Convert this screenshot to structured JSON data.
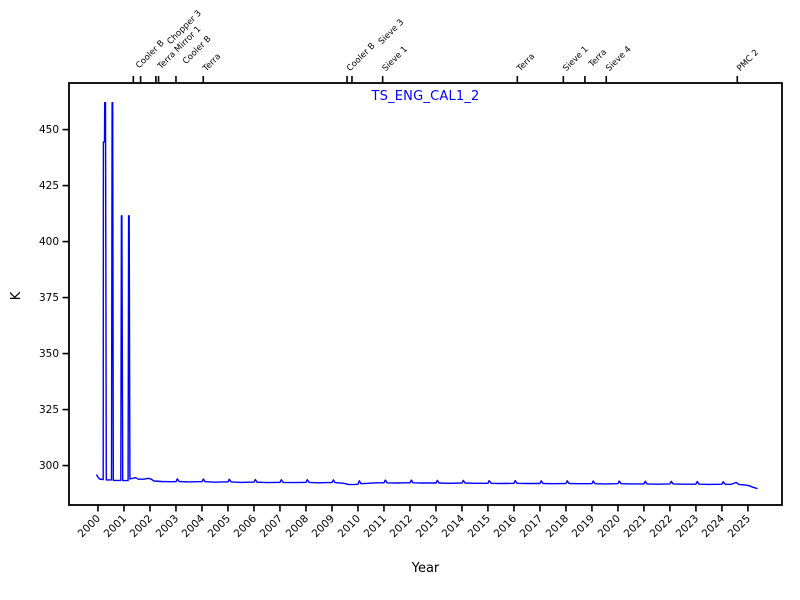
{
  "figure": {
    "title": "TS_ENG_CAL1_2",
    "xlabel": "Year",
    "ylabel": "K",
    "title_color": "#0000ff",
    "line_color": "#0000ff",
    "axis_color": "#000000",
    "background_color": "#ffffff"
  },
  "chart_data": {
    "type": "line",
    "title": "TS_ENG_CAL1_2",
    "xlabel": "Year",
    "ylabel": "K",
    "xlim": [
      1998.886,
      2026.31
    ],
    "ylim": [
      282.4,
      470.8
    ],
    "xticks": [
      2000,
      2001,
      2002,
      2003,
      2004,
      2005,
      2006,
      2007,
      2008,
      2009,
      2010,
      2011,
      2012,
      2013,
      2014,
      2015,
      2016,
      2017,
      2018,
      2019,
      2020,
      2021,
      2022,
      2023,
      2024,
      2025
    ],
    "yticks": [
      300,
      325,
      350,
      375,
      400,
      425,
      450
    ],
    "grid": false,
    "legend": null,
    "events": [
      {
        "label": "Cooler B",
        "year": 2001.36,
        "lift": 6
      },
      {
        "label": "Chopper 3",
        "year": 2001.64,
        "lift": 40
      },
      {
        "label": "Terra Mirror 1",
        "year": 2002.23,
        "lift": 5
      },
      {
        "label": "",
        "year": 2002.33,
        "lift": 0
      },
      {
        "label": "Cooler B",
        "year": 2003.0,
        "lift": 12
      },
      {
        "label": "Terra",
        "year": 2004.05,
        "lift": 2
      },
      {
        "label": "Cooler B",
        "year": 2009.58,
        "lift": 2
      },
      {
        "label": "Sieve 3",
        "year": 2009.77,
        "lift": 40
      },
      {
        "label": "Sieve 1",
        "year": 2010.95,
        "lift": 2
      },
      {
        "label": "Terra",
        "year": 2016.13,
        "lift": 2
      },
      {
        "label": "Sieve 1",
        "year": 2017.9,
        "lift": 2
      },
      {
        "label": "Terra",
        "year": 2018.73,
        "lift": 8
      },
      {
        "label": "Sieve 4",
        "year": 2019.55,
        "lift": 2
      },
      {
        "label": "PMC 2",
        "year": 2024.59,
        "lift": 2
      }
    ],
    "series": [
      {
        "name": "TS_ENG_CAL1_2",
        "color": "#0000ff",
        "points": [
          [
            1999.95,
            295.8
          ],
          [
            2000.05,
            294.0
          ],
          [
            2000.18,
            293.8
          ],
          [
            2000.2,
            293.8
          ],
          [
            2000.21,
            444.5
          ],
          [
            2000.25,
            444.5
          ],
          [
            2000.26,
            462.0
          ],
          [
            2000.29,
            462.0
          ],
          [
            2000.32,
            293.6
          ],
          [
            2000.52,
            293.6
          ],
          [
            2000.545,
            462.0
          ],
          [
            2000.565,
            462.0
          ],
          [
            2000.59,
            293.4
          ],
          [
            2000.88,
            293.4
          ],
          [
            2000.9,
            411.5
          ],
          [
            2000.92,
            411.5
          ],
          [
            2000.95,
            293.3
          ],
          [
            2001.16,
            293.3
          ],
          [
            2001.18,
            411.5
          ],
          [
            2001.2,
            411.5
          ],
          [
            2001.23,
            294.0
          ],
          [
            2001.45,
            294.6
          ],
          [
            2001.55,
            293.9
          ],
          [
            2001.75,
            293.9
          ],
          [
            2001.95,
            294.3
          ],
          [
            2002.05,
            293.9
          ],
          [
            2002.15,
            293.1
          ],
          [
            2002.45,
            292.9
          ],
          [
            2002.75,
            292.8
          ],
          [
            2003.0,
            292.8
          ],
          [
            2003.05,
            294.1
          ],
          [
            2003.12,
            292.9
          ],
          [
            2003.5,
            292.7
          ],
          [
            2003.8,
            292.8
          ],
          [
            2004.0,
            292.8
          ],
          [
            2004.05,
            294.0
          ],
          [
            2004.12,
            292.8
          ],
          [
            2004.5,
            292.6
          ],
          [
            2004.8,
            292.7
          ],
          [
            2005.0,
            292.7
          ],
          [
            2005.05,
            293.9
          ],
          [
            2005.12,
            292.7
          ],
          [
            2005.5,
            292.5
          ],
          [
            2005.8,
            292.6
          ],
          [
            2006.0,
            292.6
          ],
          [
            2006.05,
            293.8
          ],
          [
            2006.12,
            292.6
          ],
          [
            2006.5,
            292.4
          ],
          [
            2006.8,
            292.5
          ],
          [
            2007.0,
            292.5
          ],
          [
            2007.05,
            293.7
          ],
          [
            2007.12,
            292.5
          ],
          [
            2007.5,
            292.4
          ],
          [
            2007.8,
            292.5
          ],
          [
            2008.0,
            292.5
          ],
          [
            2008.05,
            293.7
          ],
          [
            2008.12,
            292.5
          ],
          [
            2008.5,
            292.3
          ],
          [
            2008.8,
            292.4
          ],
          [
            2009.0,
            292.4
          ],
          [
            2009.05,
            293.6
          ],
          [
            2009.12,
            292.4
          ],
          [
            2009.45,
            292.1
          ],
          [
            2009.65,
            291.5
          ],
          [
            2009.9,
            291.6
          ],
          [
            2010.0,
            291.7
          ],
          [
            2010.05,
            293.2
          ],
          [
            2010.12,
            291.9
          ],
          [
            2010.4,
            292.1
          ],
          [
            2010.7,
            292.3
          ],
          [
            2011.0,
            292.3
          ],
          [
            2011.05,
            293.5
          ],
          [
            2011.12,
            292.3
          ],
          [
            2011.5,
            292.2
          ],
          [
            2011.8,
            292.3
          ],
          [
            2012.0,
            292.3
          ],
          [
            2012.05,
            293.5
          ],
          [
            2012.12,
            292.3
          ],
          [
            2012.5,
            292.2
          ],
          [
            2013.0,
            292.2
          ],
          [
            2013.05,
            293.4
          ],
          [
            2013.12,
            292.2
          ],
          [
            2013.5,
            292.1
          ],
          [
            2014.0,
            292.2
          ],
          [
            2014.05,
            293.4
          ],
          [
            2014.12,
            292.2
          ],
          [
            2014.5,
            292.1
          ],
          [
            2015.0,
            292.1
          ],
          [
            2015.05,
            293.3
          ],
          [
            2015.12,
            292.1
          ],
          [
            2015.5,
            292.0
          ],
          [
            2016.0,
            292.1
          ],
          [
            2016.05,
            293.3
          ],
          [
            2016.12,
            292.1
          ],
          [
            2016.5,
            292.0
          ],
          [
            2017.0,
            292.0
          ],
          [
            2017.05,
            293.2
          ],
          [
            2017.12,
            292.0
          ],
          [
            2017.5,
            291.9
          ],
          [
            2018.0,
            292.0
          ],
          [
            2018.05,
            293.2
          ],
          [
            2018.12,
            292.0
          ],
          [
            2018.5,
            291.9
          ],
          [
            2019.0,
            291.9
          ],
          [
            2019.05,
            293.1
          ],
          [
            2019.12,
            291.9
          ],
          [
            2019.5,
            291.8
          ],
          [
            2020.0,
            291.9
          ],
          [
            2020.05,
            293.1
          ],
          [
            2020.12,
            291.9
          ],
          [
            2020.5,
            291.8
          ],
          [
            2021.0,
            291.8
          ],
          [
            2021.05,
            293.0
          ],
          [
            2021.12,
            291.8
          ],
          [
            2021.5,
            291.7
          ],
          [
            2022.0,
            291.8
          ],
          [
            2022.05,
            293.0
          ],
          [
            2022.12,
            291.8
          ],
          [
            2022.5,
            291.7
          ],
          [
            2023.0,
            291.7
          ],
          [
            2023.05,
            292.9
          ],
          [
            2023.12,
            291.7
          ],
          [
            2023.5,
            291.6
          ],
          [
            2024.0,
            291.7
          ],
          [
            2024.05,
            292.8
          ],
          [
            2024.12,
            291.7
          ],
          [
            2024.35,
            291.6
          ],
          [
            2024.55,
            292.5
          ],
          [
            2024.65,
            291.6
          ],
          [
            2024.9,
            291.3
          ],
          [
            2025.05,
            291.0
          ],
          [
            2025.2,
            290.3
          ],
          [
            2025.35,
            289.8
          ]
        ]
      }
    ]
  }
}
